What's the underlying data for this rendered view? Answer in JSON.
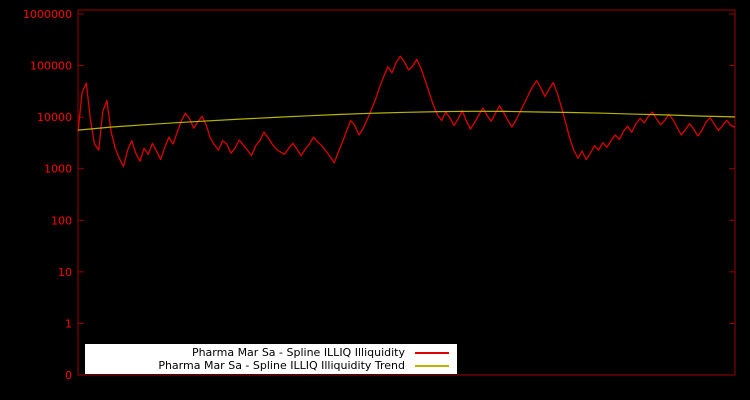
{
  "chart_data": {
    "type": "line",
    "title": "",
    "xlabel": "",
    "ylabel": "",
    "background_color": "#000000",
    "axis_color": "#990000",
    "tick_label_color": "#ff0000",
    "legend": {
      "position": "bottom-center",
      "background": "#ffffff",
      "text_color": "#000000"
    },
    "y_axis": {
      "scale": "log",
      "tick_labels": [
        "1000000",
        "100000",
        "10000",
        "1000",
        "100",
        "10",
        "1",
        "0"
      ],
      "range_top": 1000000,
      "range_bottom": 1
    },
    "x_axis": {
      "tick_labels": [],
      "note": "no visible x tick labels"
    },
    "series": [
      {
        "name": "Pharma Mar Sa - Spline ILLIQ Illiquidity",
        "color": "#dd0000",
        "stroke_width": 1.3,
        "values": [
          5200,
          30000,
          46000,
          9000,
          3000,
          2300,
          13000,
          21000,
          5200,
          2500,
          1600,
          1100,
          2300,
          3500,
          2000,
          1400,
          2500,
          1900,
          3100,
          2200,
          1500,
          2600,
          4100,
          3000,
          5100,
          8400,
          12000,
          9300,
          6100,
          8100,
          10400,
          7100,
          4000,
          2900,
          2300,
          3500,
          3000,
          2000,
          2500,
          3600,
          2900,
          2300,
          1800,
          2800,
          3500,
          5100,
          4000,
          3000,
          2400,
          2100,
          1900,
          2500,
          3100,
          2400,
          1800,
          2400,
          3000,
          4100,
          3300,
          2800,
          2200,
          1700,
          1300,
          2100,
          3300,
          5400,
          8600,
          6900,
          4500,
          6000,
          9000,
          14000,
          22000,
          38000,
          62000,
          95000,
          72000,
          115000,
          152000,
          118000,
          82000,
          98000,
          132000,
          88000,
          52000,
          30000,
          17000,
          11000,
          8600,
          12500,
          9700,
          6900,
          9300,
          13400,
          8400,
          5900,
          7900,
          11000,
          15000,
          10800,
          8300,
          11800,
          16500,
          12400,
          8800,
          6400,
          8800,
          12600,
          18500,
          27000,
          39000,
          51000,
          37000,
          25000,
          35000,
          47000,
          29000,
          15500,
          7800,
          3900,
          2300,
          1600,
          2200,
          1500,
          2000,
          2800,
          2300,
          3200,
          2600,
          3500,
          4500,
          3700,
          5300,
          6700,
          5100,
          7300,
          9500,
          7700,
          10300,
          12500,
          9300,
          7100,
          8700,
          11400,
          8900,
          6300,
          4500,
          5700,
          7500,
          5900,
          4300,
          5500,
          8100,
          9700,
          7300,
          5500,
          6900,
          8700,
          6900,
          6400
        ]
      },
      {
        "name": "Pharma Mar Sa - Spline ILLIQ Illiquidity Trend",
        "color": "#b8b400",
        "stroke_width": 1.2,
        "values": [
          5600,
          6400,
          7100,
          7800,
          8500,
          9200,
          9900,
          10600,
          11300,
          11900,
          12400,
          12800,
          13000,
          12900,
          12600,
          12300,
          11900,
          11400,
          11000,
          10500,
          10100
        ]
      }
    ]
  }
}
